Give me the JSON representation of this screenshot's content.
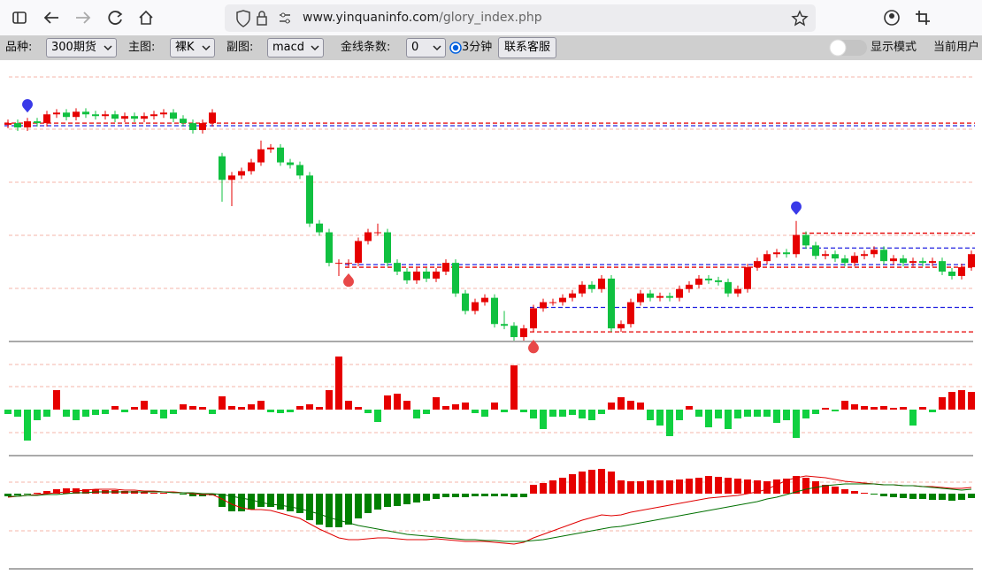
{
  "browser": {
    "url_host": "www.yinquaninfo.com",
    "url_path": "/glory_index.php"
  },
  "toolbar": {
    "variety_label": "品种:",
    "variety": "300期货",
    "main_label": "主图:",
    "main": "裸K",
    "sub_label": "副图:",
    "sub": "macd",
    "gold_label": "金线条数:",
    "gold": "0",
    "period": "3分钟",
    "service": "联系客服",
    "display_mode": "显示模式",
    "current_user": "当前用户"
  },
  "chart_data": [
    {
      "type": "candlestick",
      "up_color": "#e60000",
      "down_color": "#10c040",
      "ylim": [
        10,
        330
      ],
      "open": [
        258,
        260,
        255,
        262,
        260,
        270,
        272,
        267,
        273,
        270,
        268,
        270,
        265,
        268,
        265,
        268,
        270,
        272,
        265,
        260,
        252,
        260,
        222,
        195,
        200,
        205,
        215,
        230,
        232,
        215,
        212,
        200,
        145,
        135,
        100,
        100,
        100,
        125,
        135,
        135,
        100,
        90,
        80,
        90,
        82,
        90,
        100,
        65,
        45,
        55,
        60,
        30,
        28,
        15,
        25,
        48,
        55,
        55,
        60,
        65,
        75,
        70,
        82,
        25,
        30,
        55,
        65,
        60,
        62,
        60,
        70,
        75,
        82,
        80,
        78,
        65,
        70,
        95,
        102,
        110,
        112,
        110,
        132,
        120,
        108,
        110,
        105,
        100,
        108,
        110,
        115,
        102,
        105,
        100,
        102,
        100,
        102,
        90,
        85,
        95
      ],
      "close": [
        260,
        255,
        262,
        260,
        270,
        272,
        267,
        273,
        270,
        268,
        270,
        265,
        268,
        265,
        268,
        270,
        272,
        265,
        260,
        252,
        260,
        272,
        195,
        200,
        205,
        215,
        230,
        232,
        215,
        212,
        200,
        145,
        135,
        100,
        100,
        100,
        125,
        135,
        135,
        100,
        90,
        80,
        90,
        82,
        90,
        100,
        65,
        45,
        55,
        60,
        30,
        28,
        15,
        25,
        48,
        55,
        55,
        60,
        65,
        75,
        70,
        82,
        25,
        30,
        55,
        65,
        60,
        62,
        60,
        70,
        75,
        82,
        80,
        78,
        65,
        70,
        95,
        102,
        110,
        112,
        110,
        132,
        120,
        108,
        110,
        105,
        100,
        108,
        110,
        115,
        102,
        105,
        100,
        102,
        100,
        102,
        90,
        85,
        95,
        110
      ],
      "high": [
        264,
        264,
        266,
        266,
        274,
        276,
        276,
        277,
        277,
        274,
        274,
        274,
        272,
        272,
        272,
        274,
        276,
        276,
        269,
        264,
        264,
        276,
        226,
        204,
        209,
        219,
        240,
        236,
        236,
        219,
        216,
        204,
        149,
        139,
        104,
        104,
        129,
        139,
        145,
        139,
        104,
        94,
        94,
        94,
        94,
        104,
        104,
        69,
        59,
        64,
        64,
        45,
        32,
        29,
        52,
        59,
        59,
        64,
        69,
        79,
        79,
        86,
        86,
        34,
        59,
        69,
        69,
        66,
        66,
        74,
        79,
        86,
        86,
        84,
        82,
        74,
        99,
        106,
        114,
        116,
        116,
        148,
        136,
        124,
        114,
        114,
        109,
        112,
        114,
        119,
        119,
        109,
        109,
        106,
        106,
        106,
        106,
        94,
        99,
        114
      ],
      "low": [
        254,
        251,
        251,
        256,
        256,
        266,
        263,
        263,
        266,
        264,
        264,
        261,
        261,
        261,
        261,
        264,
        266,
        261,
        256,
        248,
        248,
        256,
        170,
        165,
        196,
        201,
        211,
        226,
        211,
        208,
        196,
        141,
        131,
        96,
        85,
        96,
        96,
        121,
        131,
        96,
        86,
        76,
        76,
        78,
        78,
        86,
        61,
        41,
        41,
        51,
        26,
        24,
        11,
        11,
        21,
        44,
        51,
        51,
        56,
        61,
        66,
        66,
        21,
        21,
        26,
        51,
        56,
        56,
        56,
        56,
        66,
        71,
        76,
        74,
        61,
        61,
        66,
        91,
        98,
        106,
        106,
        106,
        116,
        104,
        104,
        101,
        96,
        96,
        104,
        106,
        98,
        98,
        96,
        96,
        96,
        96,
        86,
        81,
        81,
        91
      ],
      "levels": [
        {
          "value": 260,
          "color": "#e60000",
          "start": 0
        },
        {
          "value": 257,
          "color": "#2020e0",
          "start": 0
        },
        {
          "value": 134,
          "color": "#e60000",
          "start": 82
        },
        {
          "value": 117,
          "color": "#2020e0",
          "start": 82
        },
        {
          "value": 98,
          "color": "#2020e0",
          "start": 35
        },
        {
          "value": 95,
          "color": "#e60000",
          "start": 35
        },
        {
          "value": 49,
          "color": "#2020e0",
          "start": 54
        },
        {
          "value": 21,
          "color": "#e60000",
          "start": 54
        }
      ],
      "markers": [
        {
          "index": 2,
          "value": 272,
          "color": "#3a3ae8"
        },
        {
          "index": 81,
          "value": 155,
          "color": "#3a3ae8"
        },
        {
          "index": 35,
          "value": 88,
          "color": "#e84848"
        },
        {
          "index": 54,
          "value": 12,
          "color": "#e84848"
        }
      ]
    },
    {
      "type": "bar",
      "up_color": "#e60000",
      "down_color": "#10d040",
      "ylim": [
        -52,
        68
      ],
      "values": [
        -5,
        -8,
        -35,
        -12,
        -8,
        22,
        -8,
        -12,
        -8,
        -6,
        -5,
        4,
        -3,
        3,
        10,
        -5,
        -10,
        -5,
        6,
        4,
        3,
        -5,
        15,
        4,
        3,
        6,
        10,
        -3,
        -4,
        -3,
        4,
        6,
        3,
        22,
        60,
        10,
        3,
        -4,
        -14,
        16,
        18,
        10,
        -10,
        -5,
        14,
        4,
        6,
        8,
        -4,
        -8,
        8,
        -3,
        50,
        -3,
        -10,
        -22,
        -8,
        -8,
        -6,
        -10,
        -12,
        -5,
        8,
        14,
        10,
        8,
        -12,
        -18,
        -30,
        -12,
        4,
        -8,
        -20,
        -10,
        -22,
        -10,
        -8,
        -8,
        -8,
        -15,
        -12,
        -32,
        -10,
        -5,
        2,
        -2,
        10,
        6,
        4,
        3,
        4,
        2,
        3,
        -18,
        3,
        -3,
        14,
        20,
        22,
        20
      ]
    },
    {
      "type": "macd",
      "up_color": "#e60000",
      "down_color": "#008000",
      "ylim": [
        -85,
        38
      ],
      "values": [
        -3,
        -2,
        -1,
        1,
        3,
        5,
        6,
        6,
        5,
        5,
        4,
        4,
        3,
        3,
        2,
        1,
        1,
        0,
        -1,
        -3,
        -3,
        -2,
        -15,
        -20,
        -20,
        -18,
        -15,
        -15,
        -18,
        -20,
        -22,
        -30,
        -35,
        -38,
        -38,
        -35,
        -28,
        -22,
        -18,
        -15,
        -14,
        -12,
        -10,
        -8,
        -6,
        -4,
        -4,
        -4,
        -3,
        -3,
        -3,
        -3,
        -4,
        -4,
        10,
        12,
        15,
        18,
        22,
        25,
        27,
        28,
        25,
        15,
        14,
        14,
        15,
        15,
        15,
        16,
        17,
        18,
        20,
        19,
        18,
        17,
        16,
        15,
        14,
        16,
        17,
        20,
        18,
        14,
        10,
        8,
        5,
        3,
        1,
        -1,
        -3,
        -4,
        -5,
        -6,
        -6,
        -7,
        -7,
        -8,
        -7,
        -5
      ],
      "lines": [
        {
          "color": "#e00000",
          "values": [
            -4,
            -3,
            -2,
            -1,
            0,
            1,
            2,
            3,
            4,
            5,
            5,
            5,
            4,
            4,
            3,
            3,
            2,
            2,
            1,
            0,
            -1,
            -1,
            -6,
            -12,
            -16,
            -18,
            -18,
            -19,
            -22,
            -25,
            -28,
            -34,
            -40,
            -45,
            -50,
            -52,
            -52,
            -51,
            -50,
            -50,
            -51,
            -52,
            -52,
            -52,
            -51,
            -52,
            -53,
            -54,
            -54,
            -54,
            -55,
            -56,
            -57,
            -55,
            -50,
            -46,
            -42,
            -38,
            -34,
            -30,
            -27,
            -24,
            -25,
            -24,
            -21,
            -19,
            -17,
            -15,
            -13,
            -11,
            -9,
            -7,
            -5,
            -4,
            -3,
            -2,
            0,
            2,
            5,
            10,
            15,
            18,
            20,
            19,
            18,
            16,
            14,
            13,
            12,
            11,
            10,
            10,
            9,
            9,
            8,
            8,
            7,
            6,
            6,
            7
          ]
        },
        {
          "color": "#007000",
          "values": [
            -3,
            -3,
            -2,
            -2,
            -1,
            -1,
            0,
            1,
            1,
            2,
            2,
            2,
            2,
            2,
            2,
            2,
            2,
            1,
            1,
            1,
            0,
            0,
            -1,
            -3,
            -5,
            -7,
            -10,
            -12,
            -13,
            -15,
            -17,
            -20,
            -23,
            -27,
            -30,
            -33,
            -36,
            -38,
            -40,
            -42,
            -44,
            -46,
            -47,
            -48,
            -49,
            -50,
            -51,
            -52,
            -52,
            -53,
            -53,
            -54,
            -54,
            -54,
            -53,
            -52,
            -50,
            -48,
            -46,
            -44,
            -42,
            -40,
            -38,
            -37,
            -35,
            -33,
            -31,
            -29,
            -27,
            -25,
            -23,
            -21,
            -19,
            -17,
            -15,
            -13,
            -11,
            -9,
            -6,
            -4,
            -1,
            2,
            5,
            7,
            9,
            10,
            11,
            11,
            11,
            11,
            10,
            10,
            9,
            9,
            8,
            7,
            6,
            5,
            4,
            5
          ]
        }
      ]
    }
  ]
}
